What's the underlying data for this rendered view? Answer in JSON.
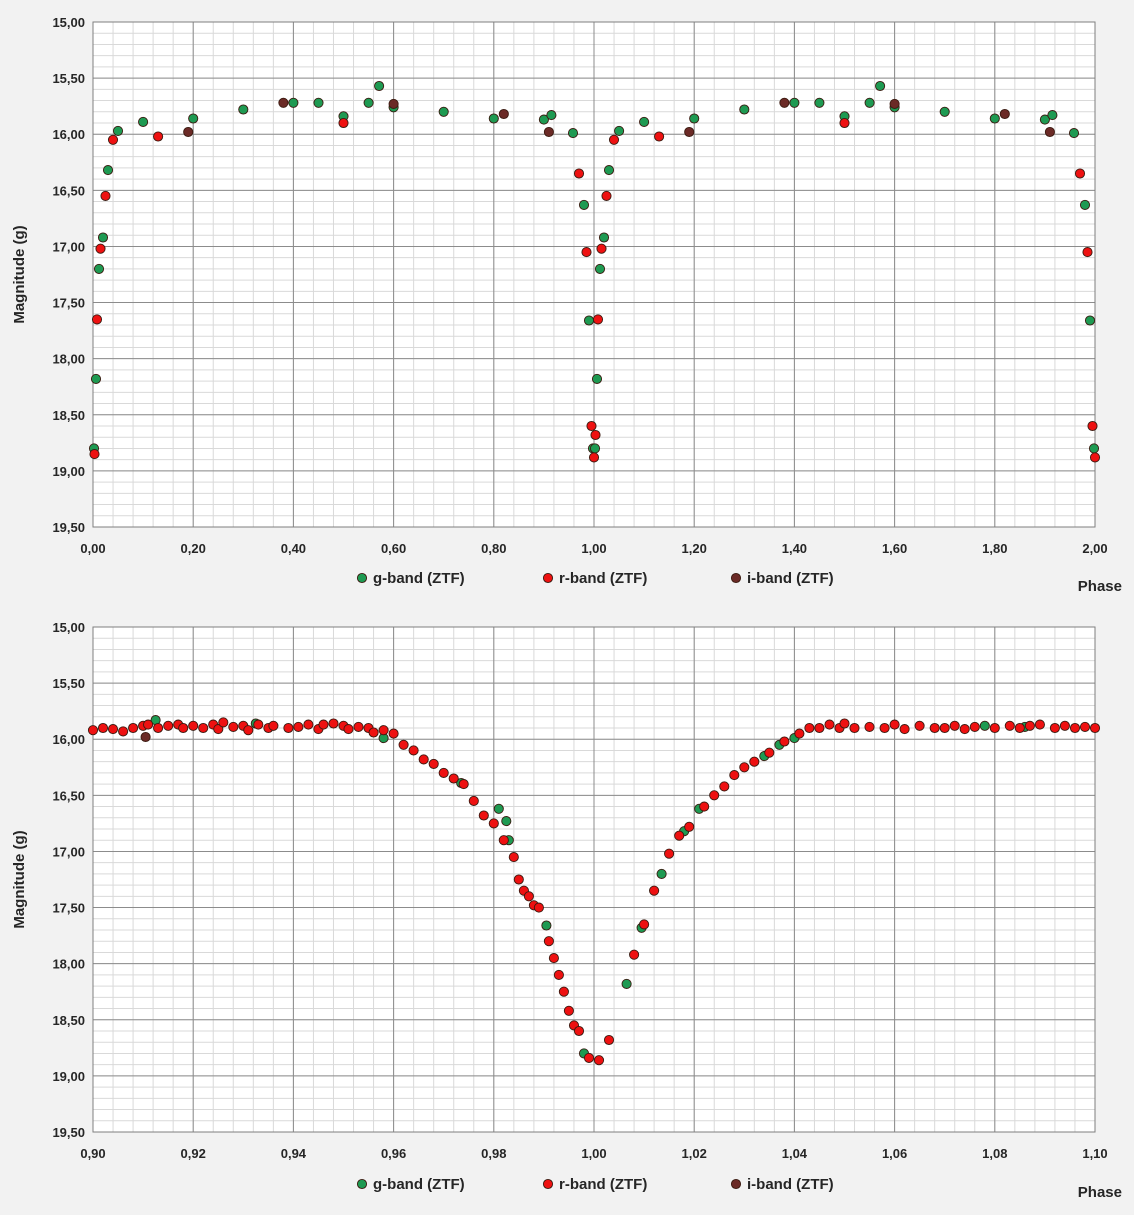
{
  "colors": {
    "g_band": "#1e9a52",
    "r_band": "#ee1111",
    "i_band": "#6b2a26",
    "marker_edge": "#3a1a10",
    "plot_bg": "#ffffff",
    "page_bg": "#f2f2f2",
    "major_grid": "#8c8c8c",
    "minor_grid": "#d9d9d9"
  },
  "chart_data": [
    {
      "type": "scatter",
      "title": "",
      "xlabel": "Phase",
      "ylabel": "Magnitude (g)",
      "xlim": [
        0.0,
        2.0
      ],
      "ylim": [
        15.0,
        19.5
      ],
      "y_inverted": true,
      "grid": "on",
      "legend_position": "bottom",
      "x_ticks": [
        "0,00",
        "0,20",
        "0,40",
        "0,60",
        "0,80",
        "1,00",
        "1,20",
        "1,40",
        "1,60",
        "1,80",
        "2,00"
      ],
      "y_ticks": [
        "15,00",
        "15,50",
        "16,00",
        "16,50",
        "17,00",
        "17,50",
        "18,00",
        "18,50",
        "19,00",
        "19,50"
      ],
      "series": [
        {
          "name": "g-band (ZTF)",
          "points": [
            [
              0.002,
              18.8
            ],
            [
              0.006,
              18.18
            ],
            [
              0.012,
              17.2
            ],
            [
              0.02,
              16.92
            ],
            [
              0.03,
              16.32
            ],
            [
              0.05,
              15.97
            ],
            [
              0.1,
              15.89
            ],
            [
              0.2,
              15.86
            ],
            [
              0.3,
              15.78
            ],
            [
              0.4,
              15.72
            ],
            [
              0.45,
              15.72
            ],
            [
              0.5,
              15.84
            ],
            [
              0.55,
              15.72
            ],
            [
              0.571,
              15.57
            ],
            [
              0.6,
              15.76
            ],
            [
              0.7,
              15.8
            ],
            [
              0.8,
              15.86
            ],
            [
              0.9,
              15.87
            ],
            [
              0.915,
              15.83
            ],
            [
              0.958,
              15.99
            ],
            [
              0.98,
              16.63
            ],
            [
              0.99,
              17.66
            ],
            [
              0.998,
              18.8
            ],
            [
              1.002,
              18.8
            ],
            [
              1.006,
              18.18
            ],
            [
              1.012,
              17.2
            ],
            [
              1.02,
              16.92
            ],
            [
              1.03,
              16.32
            ],
            [
              1.05,
              15.97
            ],
            [
              1.1,
              15.89
            ],
            [
              1.2,
              15.86
            ],
            [
              1.3,
              15.78
            ],
            [
              1.4,
              15.72
            ],
            [
              1.45,
              15.72
            ],
            [
              1.5,
              15.84
            ],
            [
              1.55,
              15.72
            ],
            [
              1.571,
              15.57
            ],
            [
              1.6,
              15.76
            ],
            [
              1.7,
              15.8
            ],
            [
              1.8,
              15.86
            ],
            [
              1.9,
              15.87
            ],
            [
              1.915,
              15.83
            ],
            [
              1.958,
              15.99
            ],
            [
              1.98,
              16.63
            ],
            [
              1.99,
              17.66
            ],
            [
              1.998,
              18.8
            ]
          ]
        },
        {
          "name": "r-band (ZTF)",
          "points": [
            [
              0.003,
              18.85
            ],
            [
              0.008,
              17.65
            ],
            [
              0.015,
              17.02
            ],
            [
              0.025,
              16.55
            ],
            [
              0.04,
              16.05
            ],
            [
              0.13,
              16.02
            ],
            [
              0.5,
              15.9
            ],
            [
              0.97,
              16.35
            ],
            [
              0.985,
              17.05
            ],
            [
              0.995,
              18.6
            ],
            [
              1.0,
              18.88
            ],
            [
              1.003,
              18.68
            ],
            [
              1.008,
              17.65
            ],
            [
              1.015,
              17.02
            ],
            [
              1.025,
              16.55
            ],
            [
              1.04,
              16.05
            ],
            [
              1.13,
              16.02
            ],
            [
              1.5,
              15.9
            ],
            [
              1.97,
              16.35
            ],
            [
              1.985,
              17.05
            ],
            [
              1.995,
              18.6
            ],
            [
              2.0,
              18.88
            ]
          ]
        },
        {
          "name": "i-band (ZTF)",
          "points": [
            [
              0.19,
              15.98
            ],
            [
              0.38,
              15.72
            ],
            [
              0.6,
              15.73
            ],
            [
              0.82,
              15.82
            ],
            [
              0.91,
              15.98
            ],
            [
              1.19,
              15.98
            ],
            [
              1.38,
              15.72
            ],
            [
              1.6,
              15.73
            ],
            [
              1.82,
              15.82
            ],
            [
              1.91,
              15.98
            ]
          ]
        }
      ]
    },
    {
      "type": "scatter",
      "title": "",
      "xlabel": "Phase",
      "ylabel": "Magnitude (g)",
      "xlim": [
        0.9,
        1.1
      ],
      "ylim": [
        15.0,
        19.5
      ],
      "y_inverted": true,
      "grid": "on",
      "legend_position": "bottom",
      "x_ticks": [
        "0,90",
        "0,92",
        "0,94",
        "0,96",
        "0,98",
        "1,00",
        "1,02",
        "1,04",
        "1,06",
        "1,08",
        "1,10"
      ],
      "y_ticks": [
        "15,00",
        "15,50",
        "16,00",
        "16,50",
        "17,00",
        "17,50",
        "18,00",
        "18,50",
        "19,00",
        "19,50"
      ],
      "series": [
        {
          "name": "g-band (ZTF)",
          "points": [
            [
              0.9125,
              15.83
            ],
            [
              0.9325,
              15.86
            ],
            [
              0.958,
              15.99
            ],
            [
              0.9735,
              16.39
            ],
            [
              0.981,
              16.62
            ],
            [
              0.9825,
              16.73
            ],
            [
              0.983,
              16.9
            ],
            [
              0.9905,
              17.66
            ],
            [
              0.998,
              18.8
            ],
            [
              1.0065,
              18.18
            ],
            [
              1.0095,
              17.68
            ],
            [
              1.0135,
              17.2
            ],
            [
              1.018,
              16.82
            ],
            [
              1.021,
              16.62
            ],
            [
              1.034,
              16.15
            ],
            [
              1.037,
              16.05
            ],
            [
              1.04,
              15.99
            ],
            [
              1.078,
              15.88
            ],
            [
              1.086,
              15.89
            ]
          ]
        },
        {
          "name": "r-band (ZTF)",
          "points": [
            [
              0.9,
              15.92
            ],
            [
              0.902,
              15.9
            ],
            [
              0.904,
              15.91
            ],
            [
              0.906,
              15.93
            ],
            [
              0.908,
              15.9
            ],
            [
              0.91,
              15.88
            ],
            [
              0.911,
              15.87
            ],
            [
              0.913,
              15.9
            ],
            [
              0.915,
              15.88
            ],
            [
              0.917,
              15.87
            ],
            [
              0.918,
              15.9
            ],
            [
              0.92,
              15.88
            ],
            [
              0.922,
              15.9
            ],
            [
              0.924,
              15.87
            ],
            [
              0.925,
              15.91
            ],
            [
              0.926,
              15.85
            ],
            [
              0.928,
              15.89
            ],
            [
              0.93,
              15.88
            ],
            [
              0.931,
              15.92
            ],
            [
              0.933,
              15.87
            ],
            [
              0.935,
              15.9
            ],
            [
              0.936,
              15.88
            ],
            [
              0.939,
              15.9
            ],
            [
              0.941,
              15.89
            ],
            [
              0.943,
              15.87
            ],
            [
              0.945,
              15.91
            ],
            [
              0.946,
              15.87
            ],
            [
              0.948,
              15.86
            ],
            [
              0.95,
              15.88
            ],
            [
              0.951,
              15.91
            ],
            [
              0.953,
              15.89
            ],
            [
              0.955,
              15.9
            ],
            [
              0.956,
              15.94
            ],
            [
              0.958,
              15.92
            ],
            [
              0.96,
              15.95
            ],
            [
              0.962,
              16.05
            ],
            [
              0.964,
              16.1
            ],
            [
              0.966,
              16.18
            ],
            [
              0.968,
              16.22
            ],
            [
              0.97,
              16.3
            ],
            [
              0.972,
              16.35
            ],
            [
              0.974,
              16.4
            ],
            [
              0.976,
              16.55
            ],
            [
              0.978,
              16.68
            ],
            [
              0.98,
              16.75
            ],
            [
              0.982,
              16.9
            ],
            [
              0.984,
              17.05
            ],
            [
              0.985,
              17.25
            ],
            [
              0.986,
              17.35
            ],
            [
              0.987,
              17.4
            ],
            [
              0.988,
              17.48
            ],
            [
              0.989,
              17.5
            ],
            [
              0.991,
              17.8
            ],
            [
              0.992,
              17.95
            ],
            [
              0.993,
              18.1
            ],
            [
              0.994,
              18.25
            ],
            [
              0.995,
              18.42
            ],
            [
              0.996,
              18.55
            ],
            [
              0.997,
              18.6
            ],
            [
              0.999,
              18.84
            ],
            [
              1.001,
              18.86
            ],
            [
              1.003,
              18.68
            ],
            [
              1.008,
              17.92
            ],
            [
              1.01,
              17.65
            ],
            [
              1.012,
              17.35
            ],
            [
              1.015,
              17.02
            ],
            [
              1.017,
              16.86
            ],
            [
              1.019,
              16.78
            ],
            [
              1.022,
              16.6
            ],
            [
              1.024,
              16.5
            ],
            [
              1.026,
              16.42
            ],
            [
              1.028,
              16.32
            ],
            [
              1.03,
              16.25
            ],
            [
              1.032,
              16.2
            ],
            [
              1.035,
              16.12
            ],
            [
              1.038,
              16.02
            ],
            [
              1.041,
              15.95
            ],
            [
              1.043,
              15.9
            ],
            [
              1.045,
              15.9
            ],
            [
              1.047,
              15.87
            ],
            [
              1.049,
              15.9
            ],
            [
              1.05,
              15.86
            ],
            [
              1.052,
              15.9
            ],
            [
              1.055,
              15.89
            ],
            [
              1.058,
              15.9
            ],
            [
              1.06,
              15.87
            ],
            [
              1.062,
              15.91
            ],
            [
              1.065,
              15.88
            ],
            [
              1.068,
              15.9
            ],
            [
              1.07,
              15.9
            ],
            [
              1.072,
              15.88
            ],
            [
              1.074,
              15.91
            ],
            [
              1.076,
              15.89
            ],
            [
              1.08,
              15.9
            ],
            [
              1.083,
              15.88
            ],
            [
              1.085,
              15.9
            ],
            [
              1.087,
              15.88
            ],
            [
              1.089,
              15.87
            ],
            [
              1.092,
              15.9
            ],
            [
              1.094,
              15.88
            ],
            [
              1.096,
              15.9
            ],
            [
              1.098,
              15.89
            ],
            [
              1.1,
              15.9
            ]
          ]
        },
        {
          "name": "i-band (ZTF)",
          "points": [
            [
              0.9105,
              15.98
            ]
          ]
        }
      ]
    }
  ]
}
